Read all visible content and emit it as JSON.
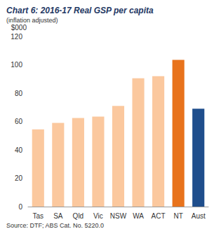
{
  "chart_data": {
    "type": "bar",
    "title": "Chart 6: 2016-17 Real GSP per capita",
    "subtitle": "(inflation adjusted)",
    "y_label": "$000",
    "source": "Source: DTF; ABS Cat. No. 5220.0",
    "categories": [
      "Tas",
      "SA",
      "Qld",
      "Vic",
      "NSW",
      "WA",
      "ACT",
      "NT",
      "Aust"
    ],
    "values": [
      54.5,
      59,
      62.5,
      63.5,
      71,
      90.5,
      92,
      103.5,
      69
    ],
    "colors": [
      "#fbc89e",
      "#fbc89e",
      "#fbc89e",
      "#fbc89e",
      "#fbc89e",
      "#fbc89e",
      "#fbc89e",
      "#e8731c",
      "#1f4e8c"
    ],
    "ylim": [
      0,
      120
    ],
    "yticks": [
      0,
      20,
      40,
      60,
      80,
      100,
      120
    ],
    "grid": false
  }
}
